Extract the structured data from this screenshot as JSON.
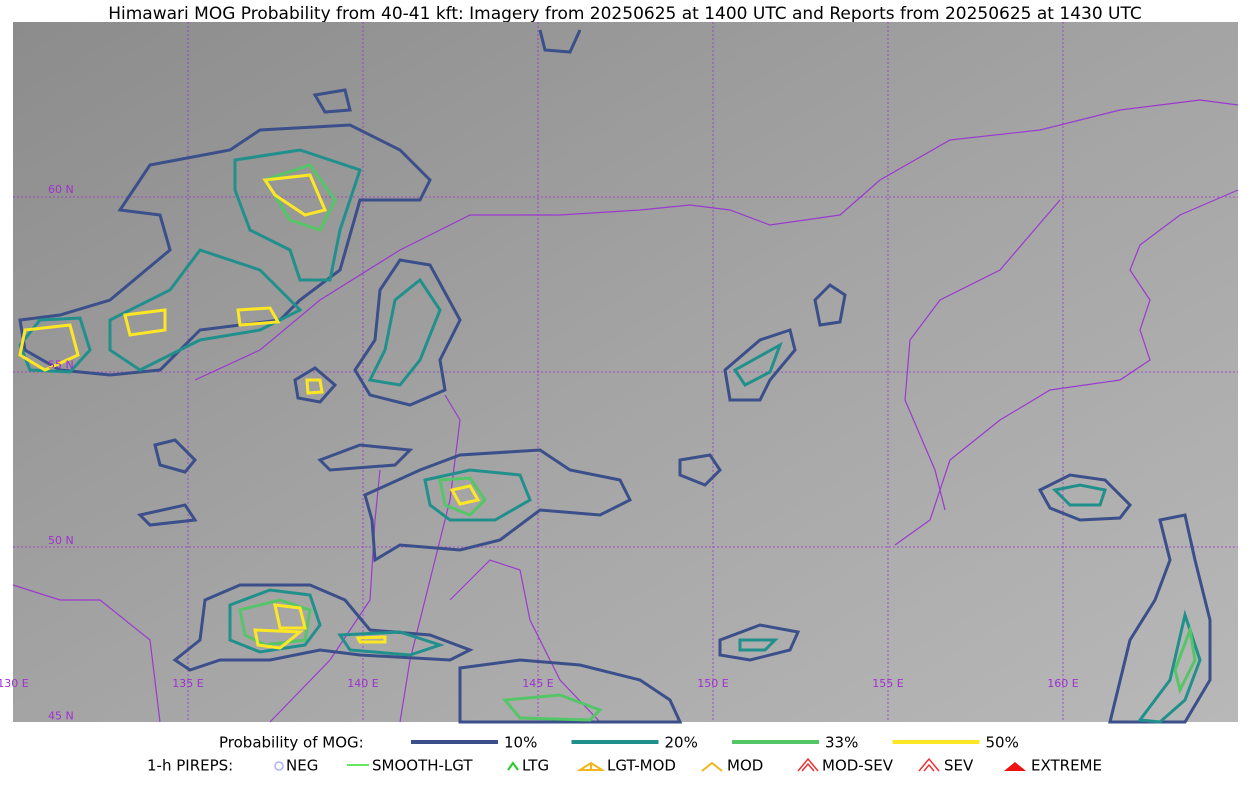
{
  "title": "Himawari MOG Probability from 40-41 kft: Imagery from 20250625 at 1400 UTC and Reports from 20250625 at 1430 UTC",
  "map": {
    "lat_labels": [
      "60 N",
      "55 N",
      "50 N",
      "45 N"
    ],
    "lon_labels": [
      "130 E",
      "135 E",
      "140 E",
      "145 E",
      "150 E",
      "155 E",
      "160 E"
    ]
  },
  "legend": {
    "probability": {
      "title": "Probability of MOG:",
      "items": [
        {
          "label": "10%",
          "color": "#3b4f8a"
        },
        {
          "label": "20%",
          "color": "#21908c"
        },
        {
          "label": "33%",
          "color": "#55c667"
        },
        {
          "label": "50%",
          "color": "#fde725"
        }
      ]
    },
    "pireps": {
      "title": "1-h PIREPS:",
      "items": [
        "NEG",
        "SMOOTH-LGT",
        "LTG",
        "LGT-MOD",
        "MOD",
        "MOD-SEV",
        "SEV",
        "EXTREME"
      ]
    }
  }
}
